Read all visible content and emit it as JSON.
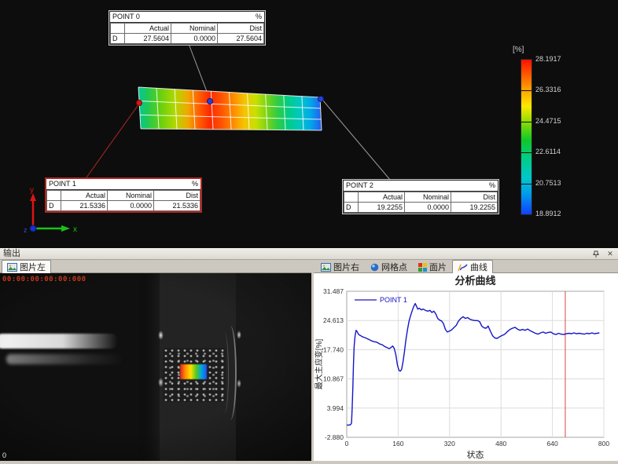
{
  "viewport3d": {
    "colorbar": {
      "unit": "[%]",
      "labels": [
        "28.1917",
        "26.3316",
        "24.4715",
        "22.6114",
        "20.7513",
        "18.8912"
      ]
    },
    "tables": [
      {
        "title": "POINT 0",
        "unit": "%",
        "col_headers": [
          "Actual",
          "Nominal",
          "Dist"
        ],
        "row_label": "D",
        "actual": "27.5604",
        "nominal": "0.0000",
        "dist": "27.5604"
      },
      {
        "title": "POINT 1",
        "unit": "%",
        "col_headers": [
          "Actual",
          "Nominal",
          "Dist"
        ],
        "row_label": "D",
        "actual": "21.5336",
        "nominal": "0.0000",
        "dist": "21.5336"
      },
      {
        "title": "POINT 2",
        "unit": "%",
        "col_headers": [
          "Actual",
          "Nominal",
          "Dist"
        ],
        "row_label": "D",
        "actual": "19.2255",
        "nominal": "0.0000",
        "dist": "19.2255"
      }
    ],
    "triad": {
      "x": "x",
      "y": "y",
      "z": "z"
    }
  },
  "output_panel": {
    "title": "输出",
    "close_glyph": "✕"
  },
  "left_panel": {
    "tab_label": "图片左",
    "timestamp": "00:00:00:00:00:000",
    "frame_label": "0"
  },
  "right_panel": {
    "tabs": [
      "图片右",
      "网格点",
      "面片",
      "曲线"
    ],
    "active_index": 3
  },
  "chart_data": {
    "type": "line",
    "title": "分析曲线",
    "xlabel": "状态",
    "ylabel": "最大主应变[%]",
    "xlim": [
      0,
      800
    ],
    "ylim": [
      -2.88,
      31.487
    ],
    "xticks": [
      "0",
      "160",
      "320",
      "480",
      "640",
      "800"
    ],
    "yticks": [
      "31.487",
      "24.613",
      "17.740",
      "10.867",
      "3.994",
      "-2.880"
    ],
    "grid": true,
    "legend_position": "top-left",
    "cursor_x": 680,
    "series": [
      {
        "name": "POINT 1",
        "color": "#1515c8",
        "points": [
          [
            0,
            0.0
          ],
          [
            6,
            0.0
          ],
          [
            12,
            0.1
          ],
          [
            15,
            0.5
          ],
          [
            17,
            4.0
          ],
          [
            19,
            9.0
          ],
          [
            21,
            14.5
          ],
          [
            23,
            18.5
          ],
          [
            26,
            21.0
          ],
          [
            29,
            22.3
          ],
          [
            33,
            21.9
          ],
          [
            37,
            21.3
          ],
          [
            42,
            21.1
          ],
          [
            48,
            20.8
          ],
          [
            55,
            20.6
          ],
          [
            62,
            20.4
          ],
          [
            70,
            20.1
          ],
          [
            78,
            19.8
          ],
          [
            86,
            19.6
          ],
          [
            94,
            19.5
          ],
          [
            102,
            19.1
          ],
          [
            110,
            18.9
          ],
          [
            118,
            18.5
          ],
          [
            126,
            18.2
          ],
          [
            132,
            18.0
          ],
          [
            137,
            18.2
          ],
          [
            143,
            18.6
          ],
          [
            148,
            18.0
          ],
          [
            153,
            16.5
          ],
          [
            158,
            14.0
          ],
          [
            163,
            12.8
          ],
          [
            167,
            12.7
          ],
          [
            171,
            13.2
          ],
          [
            175,
            14.8
          ],
          [
            179,
            17.0
          ],
          [
            184,
            20.0
          ],
          [
            189,
            22.5
          ],
          [
            194,
            24.5
          ],
          [
            199,
            25.8
          ],
          [
            204,
            27.0
          ],
          [
            209,
            28.0
          ],
          [
            213,
            28.6
          ],
          [
            217,
            28.0
          ],
          [
            221,
            27.3
          ],
          [
            226,
            27.5
          ],
          [
            232,
            27.1
          ],
          [
            238,
            27.3
          ],
          [
            245,
            27.0
          ],
          [
            252,
            26.8
          ],
          [
            259,
            27.0
          ],
          [
            265,
            26.5
          ],
          [
            271,
            26.8
          ],
          [
            277,
            26.2
          ],
          [
            283,
            25.1
          ],
          [
            289,
            24.7
          ],
          [
            295,
            24.5
          ],
          [
            301,
            23.9
          ],
          [
            307,
            22.5
          ],
          [
            313,
            21.9
          ],
          [
            319,
            22.1
          ],
          [
            326,
            22.4
          ],
          [
            333,
            22.9
          ],
          [
            341,
            23.5
          ],
          [
            348,
            24.5
          ],
          [
            355,
            25.1
          ],
          [
            362,
            25.5
          ],
          [
            369,
            25.1
          ],
          [
            376,
            25.3
          ],
          [
            383,
            24.9
          ],
          [
            391,
            24.7
          ],
          [
            399,
            24.6
          ],
          [
            407,
            24.6
          ],
          [
            414,
            24.3
          ],
          [
            420,
            23.3
          ],
          [
            427,
            22.9
          ],
          [
            434,
            22.8
          ],
          [
            440,
            23.3
          ],
          [
            447,
            22.1
          ],
          [
            454,
            21.0
          ],
          [
            461,
            20.5
          ],
          [
            468,
            20.4
          ],
          [
            476,
            20.8
          ],
          [
            484,
            21.1
          ],
          [
            492,
            21.4
          ],
          [
            500,
            22.0
          ],
          [
            508,
            22.5
          ],
          [
            516,
            22.8
          ],
          [
            524,
            23.0
          ],
          [
            531,
            22.6
          ],
          [
            539,
            22.3
          ],
          [
            547,
            22.5
          ],
          [
            555,
            22.3
          ],
          [
            563,
            22.6
          ],
          [
            571,
            22.2
          ],
          [
            579,
            21.9
          ],
          [
            587,
            21.6
          ],
          [
            595,
            21.4
          ],
          [
            603,
            21.7
          ],
          [
            611,
            21.9
          ],
          [
            619,
            21.6
          ],
          [
            627,
            21.8
          ],
          [
            635,
            21.9
          ],
          [
            643,
            21.5
          ],
          [
            651,
            21.3
          ],
          [
            659,
            21.6
          ],
          [
            667,
            21.4
          ],
          [
            675,
            21.3
          ],
          [
            683,
            21.5
          ],
          [
            691,
            21.6
          ],
          [
            699,
            21.5
          ],
          [
            707,
            21.7
          ],
          [
            715,
            21.5
          ],
          [
            723,
            21.6
          ],
          [
            731,
            21.5
          ],
          [
            739,
            21.4
          ],
          [
            747,
            21.6
          ],
          [
            755,
            21.5
          ],
          [
            763,
            21.7
          ],
          [
            771,
            21.5
          ],
          [
            779,
            21.6
          ],
          [
            786,
            21.7
          ]
        ]
      }
    ]
  },
  "colors": {
    "selection_red": "#b02722",
    "curve_blue": "#1515c8",
    "cursor_red": "#dd4444",
    "leader_gray": "#9a9a9a",
    "colorbar_stops": [
      [
        0,
        "#ff1000"
      ],
      [
        0.18,
        "#ff9800"
      ],
      [
        0.3,
        "#ffe800"
      ],
      [
        0.4,
        "#90dc00"
      ],
      [
        0.52,
        "#10c828"
      ],
      [
        0.64,
        "#00cc88"
      ],
      [
        0.76,
        "#00c8c8"
      ],
      [
        0.86,
        "#00a0e8"
      ],
      [
        1,
        "#1040ff"
      ]
    ],
    "specimen_stops": [
      [
        0,
        "#00c89c"
      ],
      [
        0.05,
        "#20c855"
      ],
      [
        0.12,
        "#66d010"
      ],
      [
        0.2,
        "#b0d800"
      ],
      [
        0.27,
        "#f0a800"
      ],
      [
        0.33,
        "#ff6000"
      ],
      [
        0.39,
        "#ff2800"
      ],
      [
        0.45,
        "#ff5000"
      ],
      [
        0.52,
        "#ff8c00"
      ],
      [
        0.58,
        "#f5c400"
      ],
      [
        0.64,
        "#c8e000"
      ],
      [
        0.7,
        "#7cd414"
      ],
      [
        0.76,
        "#30cc44"
      ],
      [
        0.82,
        "#00cc88"
      ],
      [
        0.88,
        "#00c8c0"
      ],
      [
        0.94,
        "#00a8e8"
      ],
      [
        1,
        "#2858f0"
      ]
    ]
  }
}
